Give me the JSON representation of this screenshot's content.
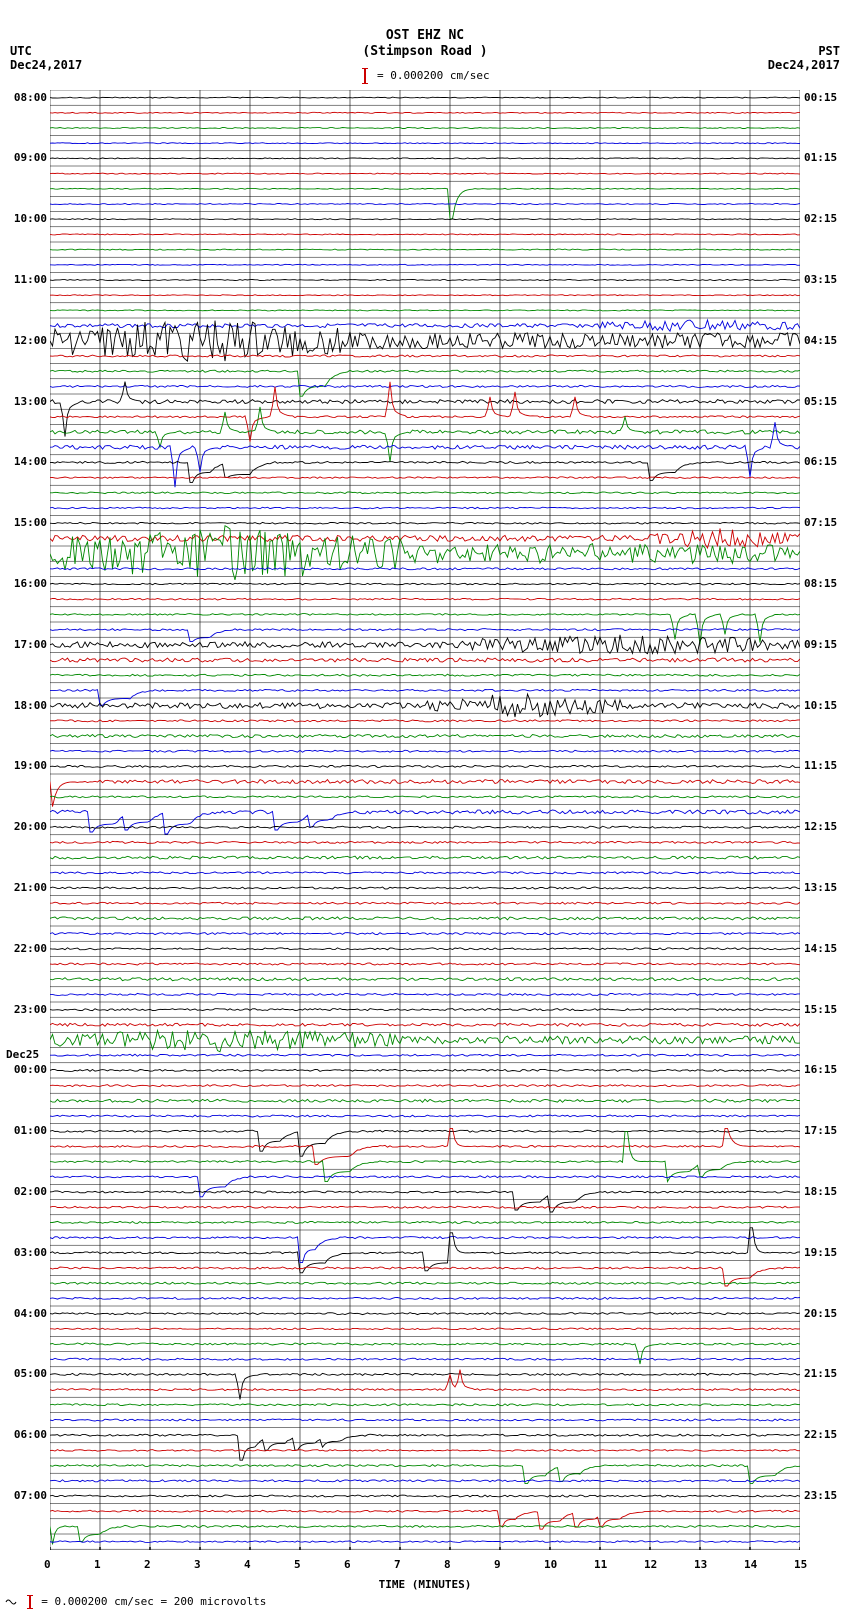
{
  "header": {
    "title": "OST EHZ NC",
    "subtitle": "(Stimpson Road )",
    "scale_text": "= 0.000200 cm/sec"
  },
  "timezone_left": "UTC",
  "date_left": "Dec24,2017",
  "timezone_right": "PST",
  "date_right": "Dec24,2017",
  "xaxis": {
    "label": "TIME (MINUTES)",
    "ticks": [
      0,
      1,
      2,
      3,
      4,
      5,
      6,
      7,
      8,
      9,
      10,
      11,
      12,
      13,
      14,
      15
    ]
  },
  "footer": "= 0.000200 cm/sec =    200 microvolts",
  "plot": {
    "colors": {
      "black": "#000000",
      "red": "#cc0000",
      "green": "#008800",
      "blue": "#0000dd",
      "grid": "#000000",
      "bg": "#ffffff"
    },
    "grid": {
      "x_minutes": 15,
      "x_step": 1,
      "line_width": 0.6
    },
    "row_height": 15.2,
    "n_rows": 96,
    "color_cycle": [
      "black",
      "red",
      "green",
      "blue"
    ],
    "left_labels": [
      {
        "row": 0,
        "text": "08:00"
      },
      {
        "row": 4,
        "text": "09:00"
      },
      {
        "row": 8,
        "text": "10:00"
      },
      {
        "row": 12,
        "text": "11:00"
      },
      {
        "row": 16,
        "text": "12:00"
      },
      {
        "row": 20,
        "text": "13:00"
      },
      {
        "row": 24,
        "text": "14:00"
      },
      {
        "row": 28,
        "text": "15:00"
      },
      {
        "row": 32,
        "text": "16:00"
      },
      {
        "row": 36,
        "text": "17:00"
      },
      {
        "row": 40,
        "text": "18:00"
      },
      {
        "row": 44,
        "text": "19:00"
      },
      {
        "row": 48,
        "text": "20:00"
      },
      {
        "row": 52,
        "text": "21:00"
      },
      {
        "row": 56,
        "text": "22:00"
      },
      {
        "row": 60,
        "text": "23:00"
      },
      {
        "row": 64,
        "text": "00:00"
      },
      {
        "row": 68,
        "text": "01:00"
      },
      {
        "row": 72,
        "text": "02:00"
      },
      {
        "row": 76,
        "text": "03:00"
      },
      {
        "row": 80,
        "text": "04:00"
      },
      {
        "row": 84,
        "text": "05:00"
      },
      {
        "row": 88,
        "text": "06:00"
      },
      {
        "row": 92,
        "text": "07:00"
      }
    ],
    "day_label": {
      "row": 63,
      "text": "Dec25"
    },
    "right_labels": [
      {
        "row": 0,
        "text": "00:15"
      },
      {
        "row": 4,
        "text": "01:15"
      },
      {
        "row": 8,
        "text": "02:15"
      },
      {
        "row": 12,
        "text": "03:15"
      },
      {
        "row": 16,
        "text": "04:15"
      },
      {
        "row": 20,
        "text": "05:15"
      },
      {
        "row": 24,
        "text": "06:15"
      },
      {
        "row": 28,
        "text": "07:15"
      },
      {
        "row": 32,
        "text": "08:15"
      },
      {
        "row": 36,
        "text": "09:15"
      },
      {
        "row": 40,
        "text": "10:15"
      },
      {
        "row": 44,
        "text": "11:15"
      },
      {
        "row": 48,
        "text": "12:15"
      },
      {
        "row": 52,
        "text": "13:15"
      },
      {
        "row": 56,
        "text": "14:15"
      },
      {
        "row": 60,
        "text": "15:15"
      },
      {
        "row": 64,
        "text": "16:15"
      },
      {
        "row": 68,
        "text": "17:15"
      },
      {
        "row": 72,
        "text": "18:15"
      },
      {
        "row": 76,
        "text": "19:15"
      },
      {
        "row": 80,
        "text": "20:15"
      },
      {
        "row": 84,
        "text": "21:15"
      },
      {
        "row": 88,
        "text": "22:15"
      },
      {
        "row": 92,
        "text": "23:15"
      }
    ],
    "traces": [
      {
        "row": 0,
        "amp": 0.5,
        "kind": "noise"
      },
      {
        "row": 1,
        "amp": 0.5,
        "kind": "noise"
      },
      {
        "row": 2,
        "amp": 0.5,
        "kind": "noise"
      },
      {
        "row": 3,
        "amp": 0.5,
        "kind": "noise"
      },
      {
        "row": 4,
        "amp": 0.5,
        "kind": "noise"
      },
      {
        "row": 5,
        "amp": 0.5,
        "kind": "noise"
      },
      {
        "row": 6,
        "amp": 0.5,
        "kind": "step",
        "steps": [
          [
            8,
            8.5,
            -30,
            0
          ]
        ]
      },
      {
        "row": 7,
        "amp": 0.5,
        "kind": "noise"
      },
      {
        "row": 8,
        "amp": 0.5,
        "kind": "noise"
      },
      {
        "row": 9,
        "amp": 0.5,
        "kind": "noise"
      },
      {
        "row": 10,
        "amp": 0.5,
        "kind": "noise"
      },
      {
        "row": 11,
        "amp": 0.5,
        "kind": "noise"
      },
      {
        "row": 12,
        "amp": 0.5,
        "kind": "noise"
      },
      {
        "row": 13,
        "amp": 0.5,
        "kind": "noise"
      },
      {
        "row": 14,
        "amp": 0.5,
        "kind": "noise"
      },
      {
        "row": 15,
        "amp": 2,
        "kind": "burst",
        "bstart": 11,
        "bend": 15,
        "bamp": 5
      },
      {
        "row": 16,
        "amp": 8,
        "kind": "burst",
        "bstart": 0,
        "bend": 6,
        "bamp": 15
      },
      {
        "row": 17,
        "amp": 1,
        "kind": "noise"
      },
      {
        "row": 18,
        "amp": 1,
        "kind": "step",
        "steps": [
          [
            5,
            5.5,
            -25,
            15
          ]
        ]
      },
      {
        "row": 19,
        "amp": 1,
        "kind": "noise"
      },
      {
        "row": 20,
        "amp": 2,
        "kind": "spikes",
        "spk": [
          [
            0.3,
            -35
          ],
          [
            1.5,
            20
          ]
        ]
      },
      {
        "row": 21,
        "amp": 1,
        "kind": "spikes",
        "spk": [
          [
            4,
            -25
          ],
          [
            4.5,
            30
          ],
          [
            6.8,
            35
          ],
          [
            8.8,
            20
          ],
          [
            9.3,
            25
          ],
          [
            10.5,
            20
          ]
        ]
      },
      {
        "row": 22,
        "amp": 2,
        "kind": "spikes",
        "spk": [
          [
            2.2,
            -15
          ],
          [
            3.5,
            20
          ],
          [
            4.2,
            25
          ],
          [
            6.8,
            -30
          ],
          [
            11.5,
            15
          ]
        ]
      },
      {
        "row": 23,
        "amp": 2,
        "kind": "spikes",
        "spk": [
          [
            2.5,
            -40
          ],
          [
            3,
            -25
          ],
          [
            14,
            -30
          ],
          [
            14.5,
            25
          ]
        ]
      },
      {
        "row": 24,
        "amp": 1,
        "kind": "step",
        "steps": [
          [
            2.8,
            3.2,
            -20,
            10
          ],
          [
            3.5,
            4,
            -15,
            12
          ],
          [
            12,
            12.5,
            -18,
            10
          ]
        ]
      },
      {
        "row": 25,
        "amp": 0.8,
        "kind": "noise"
      },
      {
        "row": 26,
        "amp": 0.8,
        "kind": "noise"
      },
      {
        "row": 27,
        "amp": 0.8,
        "kind": "noise"
      },
      {
        "row": 28,
        "amp": 0.8,
        "kind": "noise"
      },
      {
        "row": 29,
        "amp": 3,
        "kind": "burst",
        "bstart": 12,
        "bend": 15,
        "bamp": 8
      },
      {
        "row": 30,
        "amp": 10,
        "kind": "burst",
        "bstart": 0,
        "bend": 7,
        "bamp": 18
      },
      {
        "row": 31,
        "amp": 1,
        "kind": "noise"
      },
      {
        "row": 32,
        "amp": 0.8,
        "kind": "noise"
      },
      {
        "row": 33,
        "amp": 0.8,
        "kind": "noise"
      },
      {
        "row": 34,
        "amp": 0.8,
        "kind": "spikes",
        "spk": [
          [
            12.5,
            -25
          ],
          [
            13,
            -30
          ],
          [
            13.5,
            -20
          ],
          [
            14.2,
            -28
          ]
        ]
      },
      {
        "row": 35,
        "amp": 1,
        "kind": "step",
        "steps": [
          [
            2.8,
            3.2,
            -12,
            8
          ]
        ]
      },
      {
        "row": 36,
        "amp": 3,
        "kind": "burst",
        "bstart": 8,
        "bend": 15,
        "bamp": 8
      },
      {
        "row": 37,
        "amp": 2,
        "kind": "noise"
      },
      {
        "row": 38,
        "amp": 1,
        "kind": "noise"
      },
      {
        "row": 39,
        "amp": 1,
        "kind": "step",
        "steps": [
          [
            1,
            1.6,
            -15,
            8
          ]
        ]
      },
      {
        "row": 40,
        "amp": 3,
        "kind": "burst",
        "bstart": 7.5,
        "bend": 11.5,
        "bamp": 10
      },
      {
        "row": 41,
        "amp": 1,
        "kind": "noise"
      },
      {
        "row": 42,
        "amp": 1.5,
        "kind": "noise"
      },
      {
        "row": 43,
        "amp": 1,
        "kind": "noise"
      },
      {
        "row": 44,
        "amp": 1,
        "kind": "noise"
      },
      {
        "row": 45,
        "amp": 2,
        "kind": "step",
        "steps": [
          [
            0,
            0.5,
            -25,
            0
          ]
        ]
      },
      {
        "row": 46,
        "amp": 1,
        "kind": "noise"
      },
      {
        "row": 47,
        "amp": 2,
        "kind": "step",
        "steps": [
          [
            0.8,
            1.3,
            -20,
            12
          ],
          [
            1.5,
            2,
            -18,
            10
          ],
          [
            2.3,
            2.8,
            -22,
            12
          ],
          [
            4.5,
            5,
            -18,
            10
          ],
          [
            5.2,
            5.6,
            -15,
            8
          ]
        ]
      },
      {
        "row": 48,
        "amp": 1,
        "kind": "noise"
      },
      {
        "row": 49,
        "amp": 1,
        "kind": "noise"
      },
      {
        "row": 50,
        "amp": 1.5,
        "kind": "noise"
      },
      {
        "row": 51,
        "amp": 1,
        "kind": "noise"
      },
      {
        "row": 52,
        "amp": 1,
        "kind": "noise"
      },
      {
        "row": 53,
        "amp": 1,
        "kind": "noise"
      },
      {
        "row": 54,
        "amp": 1.5,
        "kind": "noise"
      },
      {
        "row": 55,
        "amp": 1,
        "kind": "noise"
      },
      {
        "row": 56,
        "amp": 1,
        "kind": "noise"
      },
      {
        "row": 57,
        "amp": 1,
        "kind": "noise"
      },
      {
        "row": 58,
        "amp": 1.5,
        "kind": "noise"
      },
      {
        "row": 59,
        "amp": 1,
        "kind": "noise"
      },
      {
        "row": 60,
        "amp": 1,
        "kind": "noise"
      },
      {
        "row": 61,
        "amp": 1.5,
        "kind": "noise"
      },
      {
        "row": 62,
        "amp": 4,
        "kind": "burst",
        "bstart": 0,
        "bend": 7,
        "bamp": 8
      },
      {
        "row": 63,
        "amp": 1,
        "kind": "noise"
      },
      {
        "row": 64,
        "amp": 1,
        "kind": "noise"
      },
      {
        "row": 65,
        "amp": 1,
        "kind": "noise"
      },
      {
        "row": 66,
        "amp": 1.5,
        "kind": "noise"
      },
      {
        "row": 67,
        "amp": 1,
        "kind": "noise"
      },
      {
        "row": 68,
        "amp": 1,
        "kind": "step",
        "steps": [
          [
            4.2,
            4.6,
            -20,
            10
          ],
          [
            5,
            5.5,
            -25,
            12
          ]
        ]
      },
      {
        "row": 69,
        "amp": 1,
        "kind": "step",
        "steps": [
          [
            5.3,
            6,
            -18,
            10
          ],
          [
            8,
            8.3,
            18,
            0
          ],
          [
            13.5,
            14,
            18,
            0
          ]
        ]
      },
      {
        "row": 70,
        "amp": 1,
        "kind": "step",
        "steps": [
          [
            5.5,
            6,
            -20,
            10
          ],
          [
            11.5,
            11.8,
            30,
            0
          ],
          [
            12.3,
            12.8,
            -20,
            10
          ],
          [
            13,
            13.4,
            -15,
            8
          ]
        ]
      },
      {
        "row": 71,
        "amp": 1,
        "kind": "step",
        "steps": [
          [
            3,
            3.5,
            -20,
            10
          ]
        ]
      },
      {
        "row": 72,
        "amp": 1,
        "kind": "step",
        "steps": [
          [
            9.3,
            9.8,
            -18,
            10
          ],
          [
            10,
            10.5,
            -20,
            10
          ]
        ]
      },
      {
        "row": 73,
        "amp": 1,
        "kind": "noise"
      },
      {
        "row": 74,
        "amp": 1,
        "kind": "noise"
      },
      {
        "row": 75,
        "amp": 1,
        "kind": "step",
        "steps": [
          [
            5,
            5.3,
            -25,
            12
          ]
        ]
      },
      {
        "row": 76,
        "amp": 1,
        "kind": "step",
        "steps": [
          [
            5,
            5.5,
            -20,
            10
          ],
          [
            7.5,
            8,
            -18,
            10
          ],
          [
            8,
            8.3,
            20,
            0
          ],
          [
            14,
            14.3,
            25,
            0
          ]
        ]
      },
      {
        "row": 77,
        "amp": 1,
        "kind": "step",
        "steps": [
          [
            13.5,
            14,
            -18,
            10
          ]
        ]
      },
      {
        "row": 78,
        "amp": 1,
        "kind": "noise"
      },
      {
        "row": 79,
        "amp": 1,
        "kind": "noise"
      },
      {
        "row": 80,
        "amp": 1,
        "kind": "noise"
      },
      {
        "row": 81,
        "amp": 0.8,
        "kind": "noise"
      },
      {
        "row": 82,
        "amp": 1,
        "kind": "spikes",
        "spk": [
          [
            11.8,
            -20
          ]
        ]
      },
      {
        "row": 83,
        "amp": 1,
        "kind": "noise"
      },
      {
        "row": 84,
        "amp": 1,
        "kind": "spikes",
        "spk": [
          [
            3.8,
            -25
          ]
        ]
      },
      {
        "row": 85,
        "amp": 1,
        "kind": "spikes",
        "spk": [
          [
            8,
            15
          ],
          [
            8.2,
            20
          ]
        ]
      },
      {
        "row": 86,
        "amp": 1,
        "kind": "noise"
      },
      {
        "row": 87,
        "amp": 1,
        "kind": "noise"
      },
      {
        "row": 88,
        "amp": 1,
        "kind": "step",
        "steps": [
          [
            3.8,
            4.1,
            -25,
            12
          ],
          [
            4.3,
            4.7,
            -15,
            8
          ],
          [
            4.9,
            5.3,
            -15,
            8
          ],
          [
            5.4,
            5.8,
            -12,
            6
          ]
        ]
      },
      {
        "row": 89,
        "amp": 0.8,
        "kind": "noise"
      },
      {
        "row": 90,
        "amp": 1,
        "kind": "step",
        "steps": [
          [
            9.5,
            9.9,
            -18,
            10
          ],
          [
            10.2,
            10.6,
            -16,
            8
          ],
          [
            14,
            14.5,
            -18,
            10
          ]
        ]
      },
      {
        "row": 91,
        "amp": 1,
        "kind": "noise"
      },
      {
        "row": 92,
        "amp": 1,
        "kind": "noise"
      },
      {
        "row": 93,
        "amp": 1,
        "kind": "step",
        "steps": [
          [
            9,
            9.3,
            -15,
            8
          ],
          [
            9.8,
            10.2,
            -18,
            10
          ],
          [
            10.5,
            10.9,
            -16,
            8
          ],
          [
            11,
            11.4,
            -15,
            8
          ]
        ]
      },
      {
        "row": 94,
        "amp": 1,
        "kind": "step",
        "steps": [
          [
            0,
            0.3,
            -18,
            0
          ],
          [
            0.6,
            1,
            -15,
            8
          ]
        ]
      },
      {
        "row": 95,
        "amp": 0.8,
        "kind": "noise"
      }
    ]
  }
}
